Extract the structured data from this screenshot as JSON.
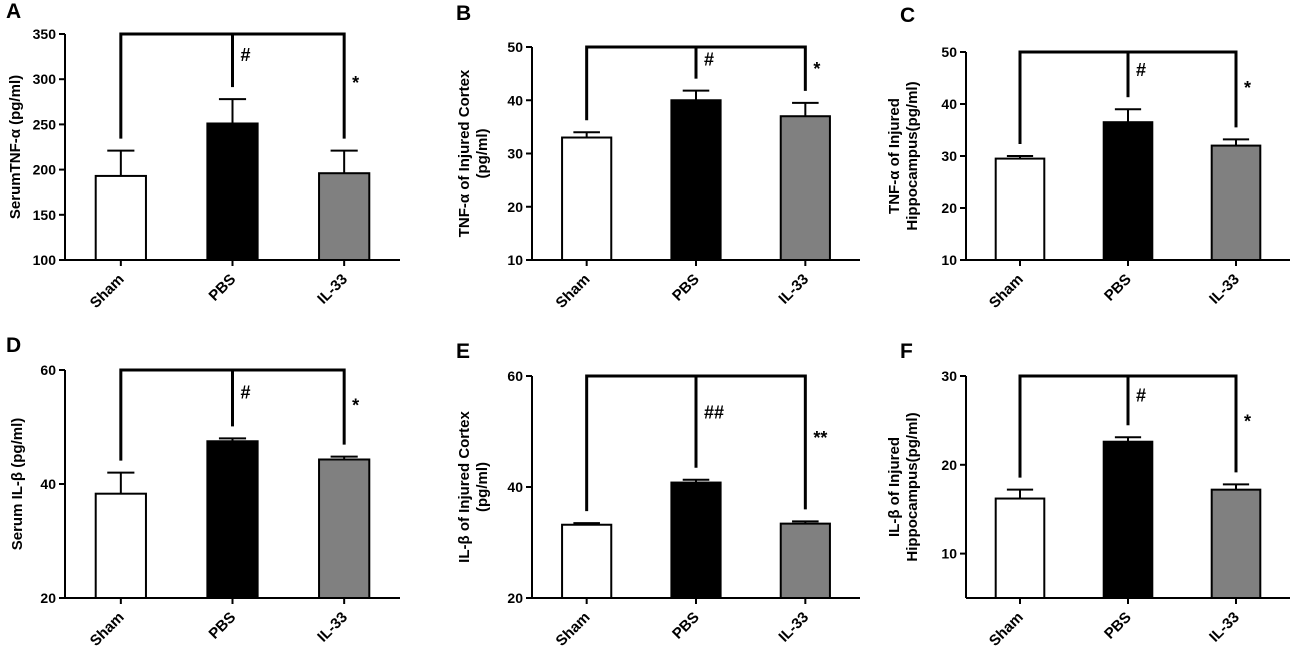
{
  "chart_data": [
    {
      "type": "bar",
      "panel": "A",
      "ylabel": [
        "SerumTNF-α (pg/ml)"
      ],
      "categories": [
        "Sham",
        "PBS",
        "IL-33"
      ],
      "values": [
        193,
        251,
        196
      ],
      "errors": [
        28,
        27,
        25
      ],
      "ylim": [
        100,
        350
      ],
      "yticks": [
        100,
        150,
        200,
        250,
        300,
        350
      ],
      "significance": {
        "pbs": "#",
        "il33": "*"
      }
    },
    {
      "type": "bar",
      "panel": "B",
      "ylabel": [
        "TNF-α of Injured Cortex",
        "(pg/ml)"
      ],
      "categories": [
        "Sham",
        "PBS",
        "IL-33"
      ],
      "values": [
        33,
        40,
        37
      ],
      "errors": [
        1,
        1.8,
        2.5
      ],
      "ylim": [
        10,
        50
      ],
      "yticks": [
        10,
        20,
        30,
        40,
        50
      ],
      "significance": {
        "pbs": "#",
        "il33": "*"
      }
    },
    {
      "type": "bar",
      "panel": "C",
      "ylabel": [
        "TNF-α of Injured",
        "Hippocampus(pg/ml)"
      ],
      "categories": [
        "Sham",
        "PBS",
        "IL-33"
      ],
      "values": [
        29.5,
        36.5,
        32
      ],
      "errors": [
        0.5,
        2.5,
        1.2
      ],
      "ylim": [
        10,
        50
      ],
      "yticks": [
        10,
        20,
        30,
        40,
        50
      ],
      "significance": {
        "pbs": "#",
        "il33": "*"
      }
    },
    {
      "type": "bar",
      "panel": "D",
      "ylabel": [
        "Serum IL-β (pg/ml)"
      ],
      "categories": [
        "Sham",
        "PBS",
        "IL-33"
      ],
      "values": [
        38.3,
        47.5,
        44.3
      ],
      "errors": [
        3.7,
        0.5,
        0.5
      ],
      "ylim": [
        20,
        60
      ],
      "yticks": [
        20,
        40,
        60
      ],
      "significance": {
        "pbs": "#",
        "il33": "*"
      }
    },
    {
      "type": "bar",
      "panel": "E",
      "ylabel": [
        "IL-β of Injured Cortex",
        "(pg/ml)"
      ],
      "categories": [
        "Sham",
        "PBS",
        "IL-33"
      ],
      "values": [
        33.2,
        40.8,
        33.4
      ],
      "errors": [
        0.3,
        0.5,
        0.4
      ],
      "ylim": [
        20,
        60
      ],
      "yticks": [
        20,
        40,
        60
      ],
      "significance": {
        "pbs": "##",
        "il33": "**"
      }
    },
    {
      "type": "bar",
      "panel": "F",
      "ylabel": [
        "IL-β of Injured",
        "Hippocampus(pg/ml)"
      ],
      "categories": [
        "Sham",
        "PBS",
        "IL-33"
      ],
      "values": [
        16.2,
        22.6,
        17.2
      ],
      "errors": [
        1.0,
        0.5,
        0.6
      ],
      "ylim": [
        5,
        30
      ],
      "yticks": [
        10,
        20,
        30
      ],
      "significance": {
        "pbs": "#",
        "il33": "*"
      }
    }
  ],
  "colors": {
    "sham": "#ffffff",
    "pbs": "#000000",
    "il33": "#808080",
    "stroke": "#000000"
  }
}
